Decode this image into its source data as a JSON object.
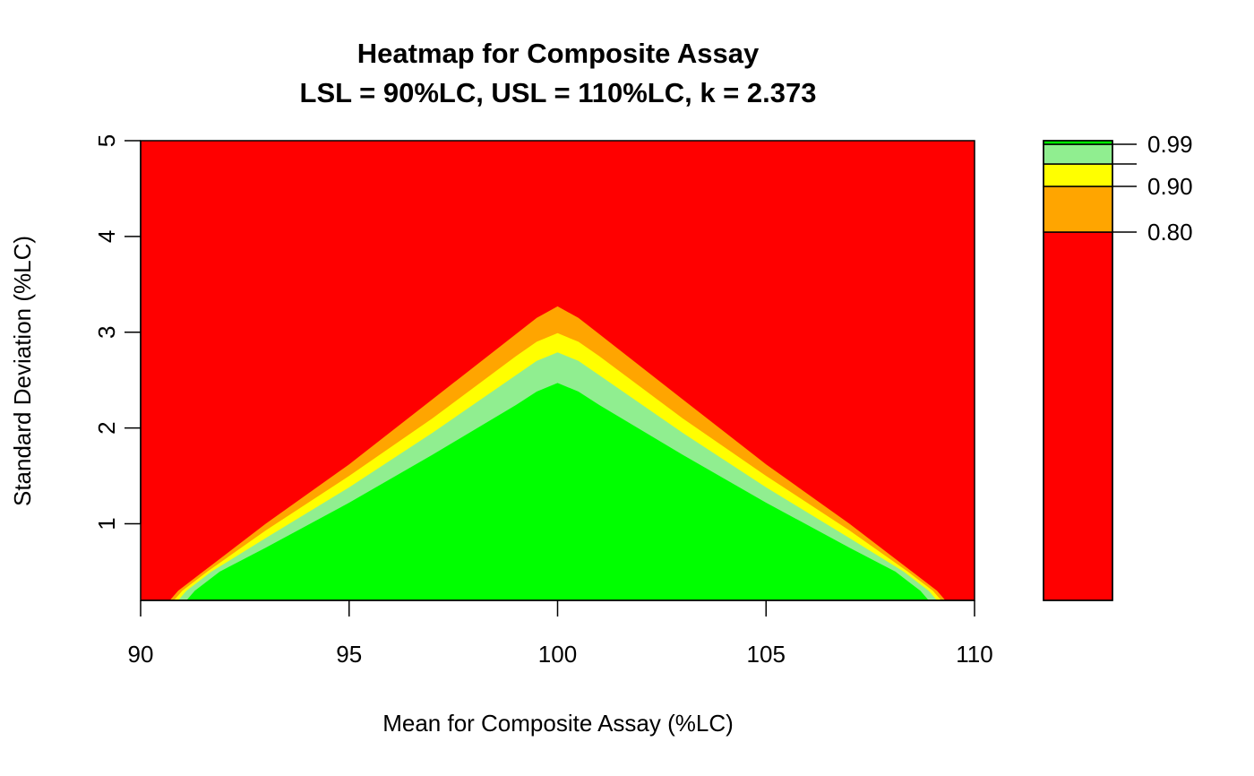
{
  "chart_data": {
    "type": "heatmap",
    "title": "Heatmap for Composite Assay",
    "subtitle": "LSL = 90%LC, USL = 110%LC, k = 2.373",
    "xlabel": "Mean for Composite Assay (%LC)",
    "ylabel": "Standard Deviation (%LC)",
    "xlim": [
      90,
      110
    ],
    "ylim": [
      0.2,
      5
    ],
    "x_ticks": [
      "90",
      "95",
      "100",
      "105",
      "110"
    ],
    "y_ticks": [
      "1",
      "2",
      "3",
      "4",
      "5"
    ],
    "grid": false,
    "levels": [
      {
        "range": [
          0.0,
          0.8
        ],
        "color": "#ff0000"
      },
      {
        "range": [
          0.8,
          0.9
        ],
        "color": "#ffa500"
      },
      {
        "range": [
          0.9,
          0.95
        ],
        "color": "#ffff00"
      },
      {
        "range": [
          0.95,
          0.99
        ],
        "color": "#90ee90"
      },
      {
        "range": [
          0.99,
          1.0
        ],
        "color": "#00ff00"
      }
    ],
    "legend_labels": [
      {
        "value": 0.99,
        "label": "0.99"
      },
      {
        "value": 0.9,
        "label": "0.90"
      },
      {
        "value": 0.8,
        "label": "0.80"
      }
    ],
    "legend_ticks": [
      0.99,
      0.95,
      0.9,
      0.8
    ],
    "legend_placement": "right",
    "contours": [
      {
        "level": 0.8,
        "color": "#ffa500",
        "points": [
          [
            90.7,
            0.2
          ],
          [
            90.9,
            0.3
          ],
          [
            91.5,
            0.5
          ],
          [
            93,
            1.0
          ],
          [
            95,
            1.62
          ],
          [
            97,
            2.3
          ],
          [
            99,
            2.98
          ],
          [
            99.5,
            3.15
          ],
          [
            100,
            3.27
          ],
          [
            100.5,
            3.15
          ],
          [
            101,
            2.98
          ],
          [
            103,
            2.3
          ],
          [
            105,
            1.62
          ],
          [
            107,
            1.0
          ],
          [
            108.5,
            0.5
          ],
          [
            109.1,
            0.3
          ],
          [
            109.3,
            0.2
          ]
        ]
      },
      {
        "level": 0.9,
        "color": "#ffff00",
        "points": [
          [
            90.8,
            0.2
          ],
          [
            91.0,
            0.3
          ],
          [
            91.6,
            0.5
          ],
          [
            93,
            0.93
          ],
          [
            95,
            1.5
          ],
          [
            97,
            2.1
          ],
          [
            99,
            2.75
          ],
          [
            99.5,
            2.9
          ],
          [
            100,
            2.99
          ],
          [
            100.5,
            2.9
          ],
          [
            101,
            2.75
          ],
          [
            103,
            2.1
          ],
          [
            105,
            1.5
          ],
          [
            107,
            0.93
          ],
          [
            108.4,
            0.5
          ],
          [
            109.0,
            0.3
          ],
          [
            109.2,
            0.2
          ]
        ]
      },
      {
        "level": 0.95,
        "color": "#90ee90",
        "points": [
          [
            90.9,
            0.2
          ],
          [
            91.1,
            0.3
          ],
          [
            91.7,
            0.5
          ],
          [
            93,
            0.85
          ],
          [
            95,
            1.38
          ],
          [
            97,
            1.95
          ],
          [
            99,
            2.55
          ],
          [
            99.5,
            2.7
          ],
          [
            100,
            2.79
          ],
          [
            100.5,
            2.7
          ],
          [
            101,
            2.55
          ],
          [
            103,
            1.95
          ],
          [
            105,
            1.38
          ],
          [
            107,
            0.85
          ],
          [
            108.3,
            0.5
          ],
          [
            108.9,
            0.3
          ],
          [
            109.1,
            0.2
          ]
        ]
      },
      {
        "level": 0.99,
        "color": "#00ff00",
        "points": [
          [
            91.1,
            0.2
          ],
          [
            91.3,
            0.3
          ],
          [
            91.9,
            0.5
          ],
          [
            93,
            0.75
          ],
          [
            95,
            1.22
          ],
          [
            97,
            1.72
          ],
          [
            99,
            2.24
          ],
          [
            99.5,
            2.38
          ],
          [
            100,
            2.47
          ],
          [
            100.5,
            2.38
          ],
          [
            101,
            2.24
          ],
          [
            103,
            1.72
          ],
          [
            105,
            1.22
          ],
          [
            107,
            0.75
          ],
          [
            108.1,
            0.5
          ],
          [
            108.7,
            0.3
          ],
          [
            108.9,
            0.2
          ]
        ]
      }
    ]
  }
}
